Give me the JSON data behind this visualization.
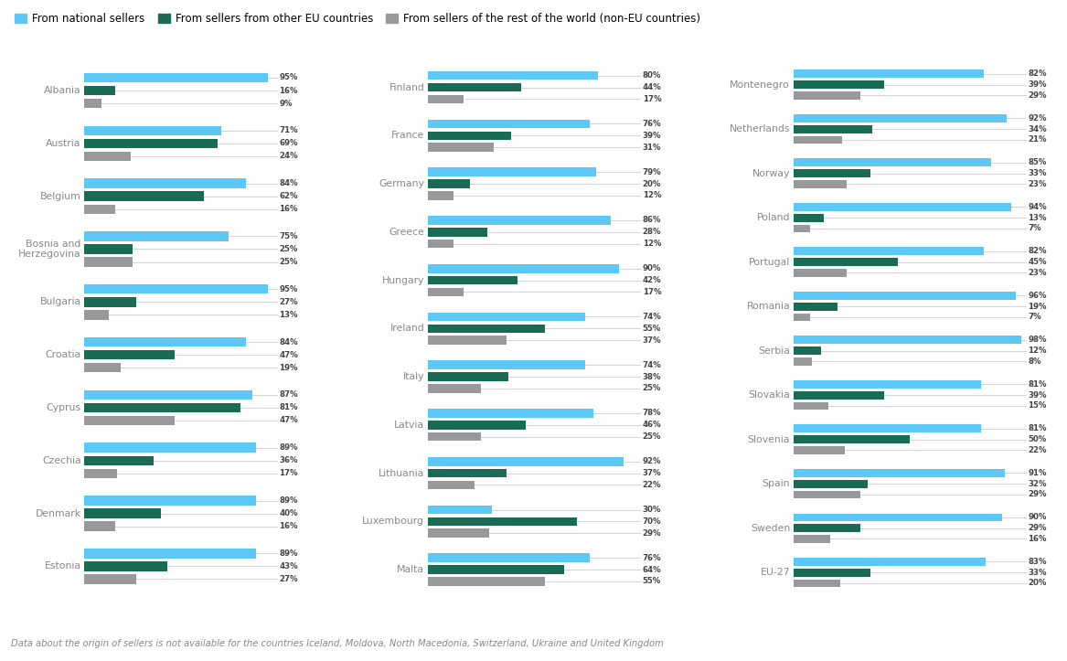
{
  "col1": {
    "countries": [
      "Albania",
      "Austria",
      "Belgium",
      "Bosnia and\nHerzegovina",
      "Bulgaria",
      "Croatia",
      "Cyprus",
      "Czechia",
      "Denmark",
      "Estonia"
    ],
    "national": [
      95,
      71,
      84,
      75,
      95,
      84,
      87,
      89,
      89,
      89
    ],
    "eu": [
      16,
      69,
      62,
      25,
      27,
      47,
      81,
      36,
      40,
      43
    ],
    "world": [
      9,
      24,
      16,
      25,
      13,
      19,
      47,
      17,
      16,
      27
    ]
  },
  "col2": {
    "countries": [
      "Finland",
      "France",
      "Germany",
      "Greece",
      "Hungary",
      "Ireland",
      "Italy",
      "Latvia",
      "Lithuania",
      "Luxembourg",
      "Malta"
    ],
    "national": [
      80,
      76,
      79,
      86,
      90,
      74,
      74,
      78,
      92,
      30,
      76
    ],
    "eu": [
      44,
      39,
      20,
      28,
      42,
      55,
      38,
      46,
      37,
      70,
      64
    ],
    "world": [
      17,
      31,
      12,
      12,
      17,
      37,
      25,
      25,
      22,
      29,
      55
    ]
  },
  "col3": {
    "countries": [
      "Montenegro",
      "Netherlands",
      "Norway",
      "Poland",
      "Portugal",
      "Romania",
      "Serbia",
      "Slovakia",
      "Slovenia",
      "Spain",
      "Sweden",
      "EU-27"
    ],
    "national": [
      82,
      92,
      85,
      94,
      82,
      96,
      98,
      81,
      81,
      91,
      90,
      83
    ],
    "eu": [
      39,
      34,
      33,
      13,
      45,
      19,
      12,
      39,
      50,
      32,
      29,
      33
    ],
    "world": [
      29,
      21,
      23,
      7,
      23,
      7,
      8,
      15,
      22,
      29,
      16,
      20
    ]
  },
  "colors": {
    "national": "#5BC8F5",
    "eu": "#1A6B54",
    "world": "#999999"
  },
  "legend": [
    "From national sellers",
    "From sellers from other EU countries",
    "From sellers of the rest of the world (non-EU countries)"
  ],
  "footnote": "Data about the origin of sellers is not available for the countries Iceland, Moldova, North Macedonia, Switzerland, Ukraine and United Kingdom"
}
